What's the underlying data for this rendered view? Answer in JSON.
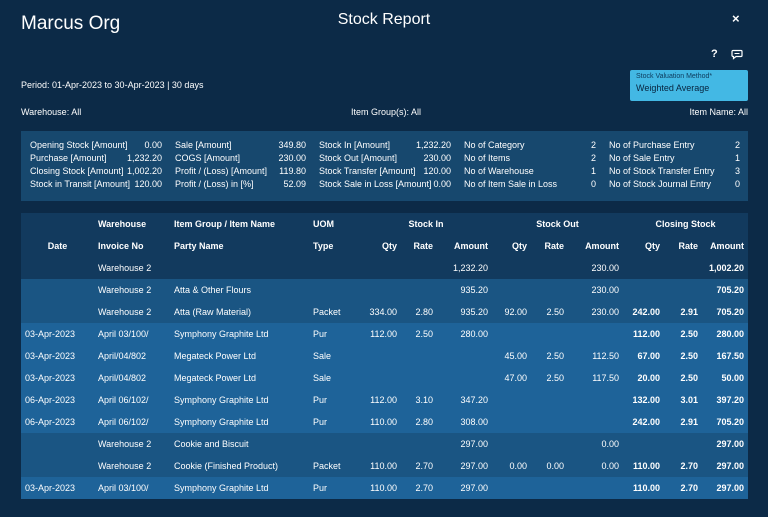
{
  "header": {
    "org": "Marcus Org",
    "title": "Stock Report",
    "close": "×",
    "help": "?"
  },
  "period": "Period: 01-Apr-2023 to 30-Apr-2023 | 30 days",
  "valuation": {
    "label": "Stock Valuation Method*",
    "value": "Weighted Average"
  },
  "filters": {
    "warehouse": "Warehouse: All",
    "item_group": "Item Group(s): All",
    "item_name": "Item Name: All"
  },
  "summary": {
    "col1": [
      {
        "label": "Opening Stock [Amount]",
        "value": "0.00"
      },
      {
        "label": "Purchase [Amount]",
        "value": "1,232.20"
      },
      {
        "label": "Closing Stock [Amount]",
        "value": "1,002.20"
      },
      {
        "label": "Stock in Transit [Amount]",
        "value": "120.00"
      }
    ],
    "col2": [
      {
        "label": "Sale [Amount]",
        "value": "349.80"
      },
      {
        "label": "COGS [Amount]",
        "value": "230.00"
      },
      {
        "label": "Profit / (Loss) [Amount]",
        "value": "119.80"
      },
      {
        "label": "Profit / (Loss) in [%]",
        "value": "52.09"
      }
    ],
    "col3": [
      {
        "label": "Stock In [Amount]",
        "value": "1,232.20"
      },
      {
        "label": "Stock Out [Amount]",
        "value": "230.00"
      },
      {
        "label": "Stock Transfer [Amount]",
        "value": "120.00"
      },
      {
        "label": "Stock Sale in Loss [Amount]",
        "value": "0.00"
      }
    ],
    "col4": [
      {
        "label": "No of Category",
        "value": "2"
      },
      {
        "label": "No of Items",
        "value": "2"
      },
      {
        "label": "No of Warehouse",
        "value": "1"
      },
      {
        "label": "No of Item Sale in Loss",
        "value": "0"
      }
    ],
    "col5": [
      {
        "label": "No of Purchase Entry",
        "value": "2"
      },
      {
        "label": "No of Sale Entry",
        "value": "1"
      },
      {
        "label": "No of Stock Transfer Entry",
        "value": "3"
      },
      {
        "label": "No of Stock Journal Entry",
        "value": "0"
      }
    ]
  },
  "table": {
    "head1": {
      "warehouse": "Warehouse",
      "group": "Item Group / Item Name",
      "uom": "UOM",
      "stock_in": "Stock In",
      "stock_out": "Stock Out",
      "closing": "Closing Stock"
    },
    "head2": {
      "date": "Date",
      "invoice": "Invoice No",
      "party": "Party Name",
      "type": "Type",
      "qty": "Qty",
      "rate": "Rate",
      "amount": "Amount"
    },
    "rows": [
      [
        "",
        "Warehouse 2",
        "",
        "",
        "",
        "",
        "1,232.20",
        "",
        "",
        "230.00",
        "",
        "",
        "1,002.20"
      ],
      [
        "",
        "Warehouse 2",
        "Atta & Other Flours",
        "",
        "",
        "",
        "935.20",
        "",
        "",
        "230.00",
        "",
        "",
        "705.20"
      ],
      [
        "",
        "Warehouse 2",
        "Atta (Raw Material)",
        "Packet",
        "334.00",
        "2.80",
        "935.20",
        "92.00",
        "2.50",
        "230.00",
        "242.00",
        "2.91",
        "705.20"
      ],
      [
        "03-Apr-2023",
        "April 03/100/",
        "Symphony Graphite Ltd",
        "Pur",
        "112.00",
        "2.50",
        "280.00",
        "",
        "",
        "",
        "112.00",
        "2.50",
        "280.00"
      ],
      [
        "03-Apr-2023",
        "April/04/802",
        "Megateck Power Ltd",
        "Sale",
        "",
        "",
        "",
        "45.00",
        "2.50",
        "112.50",
        "67.00",
        "2.50",
        "167.50"
      ],
      [
        "03-Apr-2023",
        "April/04/802",
        "Megateck Power Ltd",
        "Sale",
        "",
        "",
        "",
        "47.00",
        "2.50",
        "117.50",
        "20.00",
        "2.50",
        "50.00"
      ],
      [
        "06-Apr-2023",
        "April 06/102/",
        "Symphony Graphite Ltd",
        "Pur",
        "112.00",
        "3.10",
        "347.20",
        "",
        "",
        "",
        "132.00",
        "3.01",
        "397.20"
      ],
      [
        "06-Apr-2023",
        "April 06/102/",
        "Symphony Graphite Ltd",
        "Pur",
        "110.00",
        "2.80",
        "308.00",
        "",
        "",
        "",
        "242.00",
        "2.91",
        "705.20"
      ],
      [
        "",
        "Warehouse 2",
        "Cookie and Biscuit",
        "",
        "",
        "",
        "297.00",
        "",
        "",
        "0.00",
        "",
        "",
        "297.00"
      ],
      [
        "",
        "Warehouse 2",
        "Cookie (Finished Product)",
        "Packet",
        "110.00",
        "2.70",
        "297.00",
        "0.00",
        "0.00",
        "0.00",
        "110.00",
        "2.70",
        "297.00"
      ],
      [
        "03-Apr-2023",
        "April 03/100/",
        "Symphony Graphite Ltd",
        "Pur",
        "110.00",
        "2.70",
        "297.00",
        "",
        "",
        "",
        "110.00",
        "2.70",
        "297.00"
      ]
    ],
    "row_styles": [
      "dark",
      "mid",
      "mid",
      "light",
      "light",
      "light",
      "light",
      "light",
      "mid",
      "mid",
      "light"
    ]
  }
}
